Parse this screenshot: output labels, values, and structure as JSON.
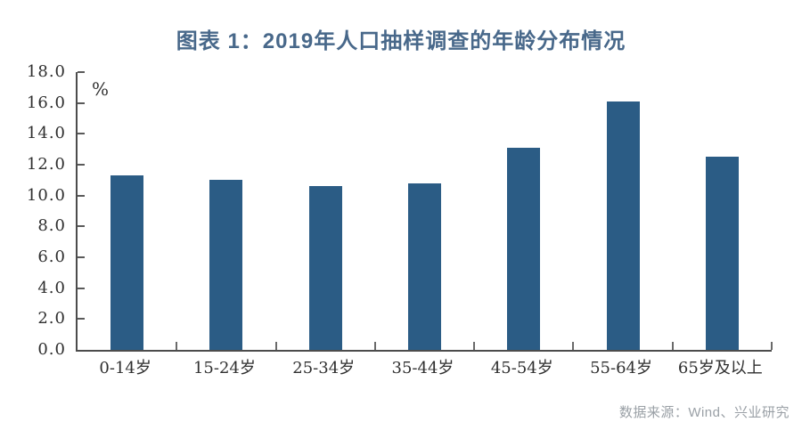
{
  "title": "图表 1：2019年人口抽样调查的年龄分布情况",
  "unit_label": "%",
  "source": {
    "text": "数据来源：Wind、兴业研究"
  },
  "colors": {
    "bar": "#2b5c85",
    "title": "#48688a",
    "axis": "#4c4c4c",
    "tick_label": "#2f2f2f",
    "source_text": "#9aa0a6",
    "background": "#ffffff"
  },
  "chart_data": {
    "type": "bar",
    "title": "图表 1：2019年人口抽样调查的年龄分布情况",
    "categories": [
      "0-14岁",
      "15-24岁",
      "25-34岁",
      "35-44岁",
      "45-54岁",
      "55-64岁",
      "65岁及以上"
    ],
    "values": [
      11.3,
      11.0,
      10.6,
      10.8,
      13.1,
      16.1,
      12.5
    ],
    "xlabel": "",
    "ylabel": "%",
    "ylim": [
      0,
      18
    ],
    "ytick_step": 2,
    "yticks": [
      "0.0",
      "2.0",
      "4.0",
      "6.0",
      "8.0",
      "10.0",
      "12.0",
      "14.0",
      "16.0",
      "18.0"
    ],
    "grid": false,
    "legend": null
  }
}
